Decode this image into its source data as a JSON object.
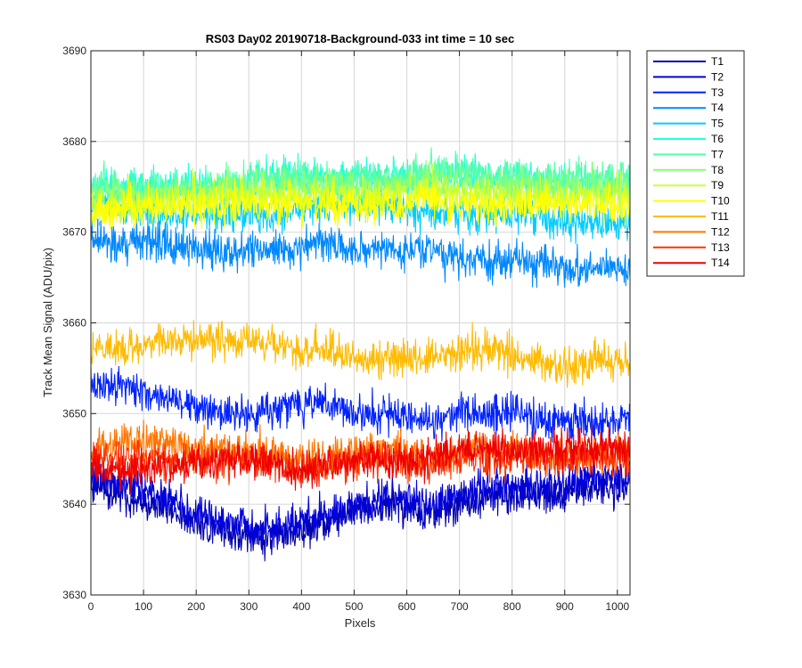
{
  "chart_data": {
    "type": "line",
    "title": "RS03 Day02 20190718-Background-033 int time = 10 sec",
    "xlabel": "Pixels",
    "ylabel": "Track Mean Signal (ADU/pix)",
    "xlim": [
      0,
      1024
    ],
    "ylim": [
      3630,
      3690
    ],
    "xticks": [
      0,
      100,
      200,
      300,
      400,
      500,
      600,
      700,
      800,
      900,
      1000
    ],
    "yticks": [
      3630,
      3640,
      3650,
      3660,
      3670,
      3680,
      3690
    ],
    "grid": true,
    "legend_position": "outside-top-right",
    "x": [
      0,
      64,
      128,
      192,
      256,
      320,
      384,
      448,
      512,
      576,
      640,
      704,
      768,
      832,
      896,
      960,
      1024
    ],
    "series": [
      {
        "name": "T1",
        "color": "#0000AA",
        "values": [
          3642,
          3641,
          3640,
          3638,
          3637,
          3636,
          3637,
          3638,
          3639,
          3640,
          3639,
          3640,
          3641,
          3641,
          3641,
          3642,
          3642
        ]
      },
      {
        "name": "T2",
        "color": "#0000DD",
        "values": [
          3643,
          3642,
          3641,
          3639,
          3638,
          3637,
          3638,
          3639,
          3640,
          3641,
          3640,
          3641,
          3642,
          3642,
          3642,
          3643,
          3643
        ]
      },
      {
        "name": "T3",
        "color": "#0022FF",
        "values": [
          3653,
          3653,
          3652,
          3651,
          3650,
          3650,
          3651,
          3651,
          3650,
          3650,
          3649,
          3650,
          3650,
          3650,
          3649,
          3649,
          3649
        ]
      },
      {
        "name": "T4",
        "color": "#0088FF",
        "values": [
          3669,
          3669,
          3669,
          3668,
          3668,
          3668,
          3668,
          3669,
          3668,
          3668,
          3668,
          3667,
          3667,
          3667,
          3666,
          3666,
          3666
        ]
      },
      {
        "name": "T5",
        "color": "#00CCFF",
        "values": [
          3673,
          3673,
          3672,
          3672,
          3672,
          3672,
          3672,
          3673,
          3673,
          3673,
          3672,
          3672,
          3672,
          3672,
          3671,
          3671,
          3671
        ]
      },
      {
        "name": "T6",
        "color": "#22FFDD",
        "values": [
          3675,
          3675,
          3675,
          3675,
          3675,
          3676,
          3676,
          3676,
          3676,
          3676,
          3676,
          3676,
          3676,
          3676,
          3675,
          3675,
          3675
        ]
      },
      {
        "name": "T7",
        "color": "#55FFAA",
        "values": [
          3675,
          3675,
          3675,
          3675,
          3675,
          3676,
          3676,
          3676,
          3676,
          3676,
          3677,
          3677,
          3676,
          3676,
          3676,
          3676,
          3676
        ]
      },
      {
        "name": "T8",
        "color": "#88FF77",
        "values": [
          3674,
          3674,
          3674,
          3674,
          3675,
          3675,
          3675,
          3675,
          3675,
          3675,
          3676,
          3675,
          3675,
          3675,
          3675,
          3675,
          3675
        ]
      },
      {
        "name": "T9",
        "color": "#CCFF33",
        "values": [
          3673,
          3673,
          3673,
          3674,
          3674,
          3674,
          3674,
          3674,
          3674,
          3674,
          3675,
          3674,
          3674,
          3674,
          3674,
          3674,
          3674
        ]
      },
      {
        "name": "T10",
        "color": "#FFFF00",
        "values": [
          3672,
          3673,
          3673,
          3673,
          3673,
          3673,
          3673,
          3673,
          3673,
          3673,
          3674,
          3673,
          3673,
          3673,
          3673,
          3673,
          3673
        ]
      },
      {
        "name": "T11",
        "color": "#FFBB00",
        "values": [
          3657,
          3657,
          3658,
          3658,
          3658,
          3658,
          3657,
          3657,
          3656,
          3656,
          3656,
          3657,
          3657,
          3656,
          3655,
          3656,
          3656
        ]
      },
      {
        "name": "T12",
        "color": "#FF7700",
        "values": [
          3646,
          3647,
          3647,
          3646,
          3646,
          3646,
          3645,
          3645,
          3646,
          3646,
          3645,
          3646,
          3646,
          3646,
          3645,
          3646,
          3646
        ]
      },
      {
        "name": "T13",
        "color": "#FF3300",
        "values": [
          3645,
          3645,
          3645,
          3645,
          3645,
          3645,
          3644,
          3644,
          3645,
          3645,
          3644,
          3645,
          3645,
          3645,
          3645,
          3645,
          3645
        ]
      },
      {
        "name": "T14",
        "color": "#EE0000",
        "values": [
          3644,
          3644,
          3644,
          3644,
          3645,
          3645,
          3644,
          3644,
          3645,
          3645,
          3645,
          3646,
          3646,
          3646,
          3646,
          3646,
          3646
        ]
      }
    ],
    "noise_amplitude": 2.6,
    "samples_per_series": 1024
  }
}
